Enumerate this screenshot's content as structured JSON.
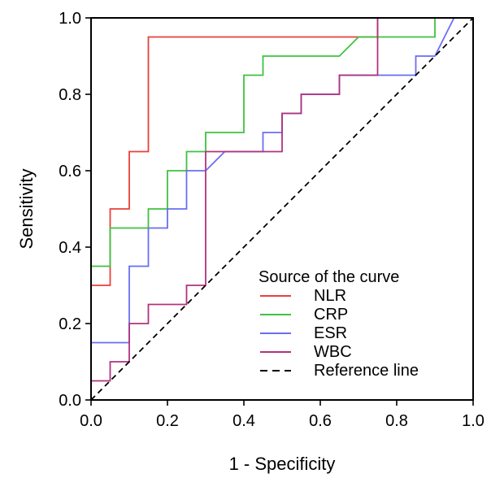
{
  "chart_data": {
    "type": "line",
    "title": "",
    "xlabel": "1 - Specificity",
    "ylabel": "Sensitivity",
    "xlim": [
      0,
      1
    ],
    "ylim": [
      0,
      1
    ],
    "grid": false,
    "x_ticks": [
      "0.0",
      "0.2",
      "0.4",
      "0.6",
      "0.8",
      "1.0"
    ],
    "y_ticks": [
      "0.0",
      "0.2",
      "0.4",
      "0.6",
      "0.8",
      "1.0"
    ],
    "legend": {
      "title": "Source of the curve",
      "placement": "bottom-right",
      "entries": [
        "NLR",
        "CRP",
        "ESR",
        "WBC",
        "Reference line"
      ]
    },
    "series": [
      {
        "name": "NLR",
        "color": "#e8403a",
        "points": [
          [
            0,
            0.3
          ],
          [
            0.05,
            0.3
          ],
          [
            0.05,
            0.5
          ],
          [
            0.1,
            0.5
          ],
          [
            0.1,
            0.65
          ],
          [
            0.15,
            0.65
          ],
          [
            0.15,
            0.95
          ],
          [
            0.75,
            0.95
          ],
          [
            0.75,
            1.0
          ],
          [
            1.0,
            1.0
          ]
        ]
      },
      {
        "name": "CRP",
        "color": "#3fc23f",
        "points": [
          [
            0,
            0.35
          ],
          [
            0.05,
            0.35
          ],
          [
            0.05,
            0.45
          ],
          [
            0.15,
            0.45
          ],
          [
            0.15,
            0.5
          ],
          [
            0.2,
            0.5
          ],
          [
            0.2,
            0.6
          ],
          [
            0.25,
            0.6
          ],
          [
            0.25,
            0.65
          ],
          [
            0.3,
            0.65
          ],
          [
            0.3,
            0.7
          ],
          [
            0.4,
            0.7
          ],
          [
            0.4,
            0.85
          ],
          [
            0.45,
            0.85
          ],
          [
            0.45,
            0.9
          ],
          [
            0.65,
            0.9
          ],
          [
            0.7,
            0.95
          ],
          [
            0.9,
            0.95
          ],
          [
            0.9,
            1.0
          ],
          [
            1.0,
            1.0
          ]
        ]
      },
      {
        "name": "ESR",
        "color": "#6a6ef2",
        "points": [
          [
            0,
            0.15
          ],
          [
            0.1,
            0.15
          ],
          [
            0.1,
            0.35
          ],
          [
            0.15,
            0.35
          ],
          [
            0.15,
            0.45
          ],
          [
            0.2,
            0.45
          ],
          [
            0.2,
            0.5
          ],
          [
            0.25,
            0.5
          ],
          [
            0.25,
            0.6
          ],
          [
            0.3,
            0.6
          ],
          [
            0.35,
            0.65
          ],
          [
            0.45,
            0.65
          ],
          [
            0.45,
            0.7
          ],
          [
            0.5,
            0.7
          ],
          [
            0.5,
            0.75
          ],
          [
            0.55,
            0.75
          ],
          [
            0.55,
            0.8
          ],
          [
            0.65,
            0.8
          ],
          [
            0.65,
            0.85
          ],
          [
            0.75,
            0.85
          ],
          [
            0.85,
            0.85
          ],
          [
            0.85,
            0.9
          ],
          [
            0.9,
            0.9
          ],
          [
            0.95,
            1.0
          ],
          [
            1.0,
            1.0
          ]
        ]
      },
      {
        "name": "WBC",
        "color": "#b0337f",
        "points": [
          [
            0,
            0.05
          ],
          [
            0.05,
            0.05
          ],
          [
            0.05,
            0.1
          ],
          [
            0.1,
            0.1
          ],
          [
            0.1,
            0.2
          ],
          [
            0.15,
            0.2
          ],
          [
            0.15,
            0.25
          ],
          [
            0.25,
            0.25
          ],
          [
            0.25,
            0.3
          ],
          [
            0.3,
            0.3
          ],
          [
            0.3,
            0.65
          ],
          [
            0.5,
            0.65
          ],
          [
            0.5,
            0.75
          ],
          [
            0.55,
            0.75
          ],
          [
            0.55,
            0.8
          ],
          [
            0.65,
            0.8
          ],
          [
            0.65,
            0.85
          ],
          [
            0.75,
            0.85
          ],
          [
            0.75,
            1.0
          ],
          [
            1.0,
            1.0
          ]
        ]
      },
      {
        "name": "Reference line",
        "color": "#000000",
        "dashed": true,
        "points": [
          [
            0,
            0
          ],
          [
            1,
            1
          ]
        ]
      }
    ]
  }
}
